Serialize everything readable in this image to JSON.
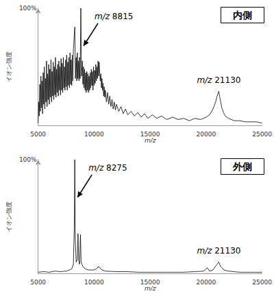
{
  "chart_data": [
    {
      "type": "line",
      "title": "内側",
      "xlabel": "m/z",
      "ylabel": "イオン強度",
      "xlim": [
        5000,
        25000
      ],
      "xticks": [
        5000,
        10000,
        15000,
        20000,
        25000
      ],
      "ylim": [
        0,
        100
      ],
      "yticks": [
        {
          "value": 100,
          "label": "100%"
        }
      ],
      "grid": false,
      "color": "#000000",
      "x": [
        5000,
        5050,
        5100,
        5150,
        5200,
        5250,
        5300,
        5350,
        5400,
        5450,
        5500,
        5550,
        5600,
        5650,
        5700,
        5750,
        5800,
        5850,
        5900,
        5950,
        6000,
        6050,
        6100,
        6150,
        6200,
        6250,
        6300,
        6350,
        6400,
        6450,
        6500,
        6550,
        6600,
        6650,
        6700,
        6750,
        6800,
        6850,
        6900,
        6950,
        7000,
        7050,
        7100,
        7150,
        7200,
        7250,
        7300,
        7350,
        7400,
        7450,
        7500,
        7550,
        7600,
        7650,
        7700,
        7750,
        7800,
        7850,
        7900,
        7950,
        8000,
        8050,
        8100,
        8150,
        8275,
        8330,
        8400,
        8450,
        8500,
        8550,
        8600,
        8650,
        8700,
        8750,
        8815,
        8870,
        8950,
        9000,
        9050,
        9100,
        9150,
        9200,
        9250,
        9300,
        9350,
        9400,
        9450,
        9500,
        9550,
        9600,
        9650,
        9700,
        9750,
        9800,
        9850,
        9900,
        9950,
        10000,
        10050,
        10100,
        10150,
        10200,
        10250,
        10300,
        10350,
        10400,
        10450,
        10500,
        10550,
        10600,
        10650,
        10700,
        10750,
        10800,
        10850,
        10900,
        10950,
        11000,
        11100,
        11200,
        11300,
        11400,
        11500,
        11600,
        11700,
        11800,
        11900,
        12000,
        12200,
        12400,
        12600,
        12800,
        13000,
        13300,
        13600,
        13900,
        14200,
        14500,
        14800,
        15200,
        15600,
        16000,
        16500,
        17000,
        17500,
        18000,
        18500,
        19000,
        19500,
        20000,
        20300,
        20500,
        20700,
        20850,
        20950,
        21050,
        21130,
        21200,
        21300,
        21400,
        21550,
        21700,
        22000,
        22500,
        23000,
        23500,
        24000,
        24500,
        25000
      ],
      "values": [
        2,
        20,
        8,
        35,
        12,
        42,
        15,
        38,
        10,
        45,
        18,
        50,
        14,
        40,
        20,
        55,
        16,
        44,
        22,
        52,
        18,
        48,
        24,
        56,
        20,
        46,
        25,
        54,
        22,
        50,
        26,
        58,
        24,
        48,
        28,
        52,
        25,
        55,
        30,
        50,
        26,
        57,
        30,
        53,
        28,
        58,
        32,
        50,
        30,
        56,
        33,
        60,
        30,
        54,
        34,
        58,
        32,
        62,
        35,
        56,
        34,
        60,
        38,
        65,
        84,
        40,
        58,
        38,
        62,
        40,
        55,
        38,
        58,
        40,
        100,
        42,
        55,
        35,
        50,
        32,
        48,
        30,
        45,
        28,
        46,
        30,
        44,
        28,
        42,
        30,
        45,
        32,
        48,
        34,
        46,
        30,
        50,
        34,
        47,
        36,
        52,
        38,
        50,
        40,
        55,
        42,
        54,
        45,
        38,
        44,
        32,
        40,
        30,
        36,
        25,
        33,
        24,
        30,
        20,
        28,
        18,
        25,
        16,
        22,
        14,
        20,
        13,
        18,
        12,
        16,
        10,
        14,
        9,
        12,
        8,
        11,
        7,
        10,
        6,
        9,
        6,
        8,
        5,
        7,
        5,
        6,
        4,
        6,
        5,
        7,
        9,
        12,
        16,
        20,
        24,
        27,
        29,
        25,
        20,
        15,
        11,
        8,
        6,
        4,
        4,
        3,
        3,
        3,
        2
      ],
      "annotations": [
        {
          "text": "m/z 8815",
          "x": 8815,
          "y": 100
        },
        {
          "text": "m/z 21130",
          "x": 21130,
          "y": 29
        }
      ]
    },
    {
      "type": "line",
      "title": "外側",
      "xlabel": "m/z",
      "ylabel": "イオン強度",
      "xlim": [
        5000,
        25000
      ],
      "xticks": [
        5000,
        10000,
        15000,
        20000,
        25000
      ],
      "ylim": [
        0,
        100
      ],
      "yticks": [
        {
          "value": 100,
          "label": "100%"
        }
      ],
      "grid": false,
      "color": "#000000",
      "x": [
        5000,
        5500,
        6000,
        6500,
        7000,
        7500,
        7800,
        8000,
        8150,
        8230,
        8275,
        8320,
        8400,
        8500,
        8560,
        8620,
        8700,
        8780,
        8840,
        9000,
        9200,
        9500,
        9800,
        10000,
        10200,
        10400,
        10500,
        10700,
        11000,
        12000,
        13000,
        14000,
        15000,
        16000,
        17000,
        18000,
        19000,
        19800,
        20100,
        20300,
        20600,
        20900,
        21130,
        21300,
        21600,
        22000,
        23000,
        24000,
        25000
      ],
      "values": [
        1,
        1.5,
        1,
        2,
        1.5,
        2,
        3,
        4,
        8,
        40,
        100,
        30,
        10,
        12,
        35,
        12,
        8,
        34,
        10,
        6,
        4,
        3,
        3,
        3,
        4,
        6,
        5,
        3,
        2,
        1.5,
        1.5,
        1,
        1,
        1,
        1,
        1,
        1.5,
        2,
        5,
        2,
        3,
        7,
        10,
        6,
        3,
        2,
        1,
        1,
        1
      ],
      "annotations": [
        {
          "text": "m/z 8275",
          "x": 8275,
          "y": 100
        },
        {
          "text": "m/z 21130",
          "x": 21130,
          "y": 10
        }
      ]
    }
  ]
}
